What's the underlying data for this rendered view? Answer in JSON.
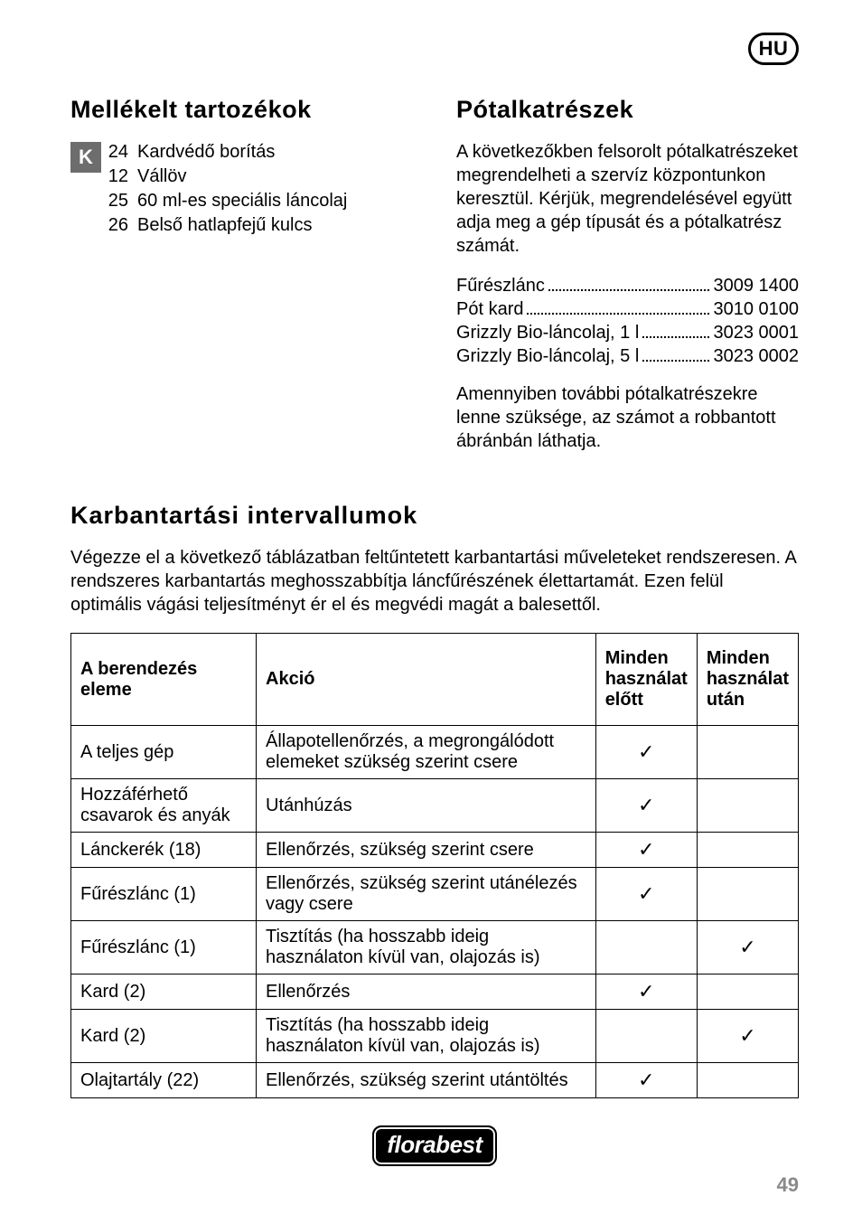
{
  "badge": "HU",
  "left": {
    "heading": "Mellékelt tartozékok",
    "k_label": "K",
    "items": [
      {
        "num": "24",
        "text": "Kardvédő borítás"
      },
      {
        "num": "12",
        "text": "Vállöv"
      },
      {
        "num": "25",
        "text": "60 ml-es speciális láncolaj"
      },
      {
        "num": "26",
        "text": "Belső hatlapfejű kulcs"
      }
    ]
  },
  "right": {
    "heading": "Pótalkatrészek",
    "para1": "A következőkben felsorolt pótalkatrészeket megrendelheti a szervíz központunkon keresztül. Kérjük, megrendelésével együtt adja meg a gép típusát és a pótalkatrész számát.",
    "parts": [
      {
        "label": "Fűrészlánc",
        "value": "3009 1400"
      },
      {
        "label": "Pót kard",
        "value": "3010 0100"
      },
      {
        "label": "Grizzly Bio-láncolaj, 1 l",
        "value": "3023 0001"
      },
      {
        "label": "Grizzly Bio-láncolaj, 5 l",
        "value": "3023 0002"
      }
    ],
    "para2": "Amennyiben további pótalkatrészekre lenne szüksége, az számot a robbantott ábránbán láthatja."
  },
  "maintenance": {
    "heading": "Karbantartási intervallumok",
    "intro": "Végezze el a következő táblázatban feltűntetett karbantartási műveleteket rendszeresen. A rendszeres karbantartás meghosszabbítja láncfűrészének élettartamát. Ezen felül optimális vágási teljesítményt ér el és megvédi magát a balesettől.",
    "headers": {
      "c1": "A berendezés eleme",
      "c2": "Akció",
      "c3": "Minden használat előtt",
      "c4": "Minden használat után"
    },
    "rows": [
      {
        "c1": "A teljes gép",
        "c2": "Állapotellenőrzés, a megrongálódott elemeket szükség szerint csere",
        "before": true,
        "after": false
      },
      {
        "c1": "Hozzáférhető csavarok és anyák",
        "c2": "Utánhúzás",
        "before": true,
        "after": false
      },
      {
        "c1": "Lánckerék (18)",
        "c2": "Ellenőrzés, szükség szerint csere",
        "before": true,
        "after": false
      },
      {
        "c1": "Fűrészlánc (1)",
        "c2": "Ellenőrzés, szükség szerint utánélezés vagy csere",
        "before": true,
        "after": false
      },
      {
        "c1": "Fűrészlánc (1)",
        "c2": "Tisztítás (ha hosszabb ideig használaton kívül van, olajozás is)",
        "before": false,
        "after": true
      },
      {
        "c1": "Kard (2)",
        "c2": "Ellenőrzés",
        "before": true,
        "after": false
      },
      {
        "c1": "Kard (2)",
        "c2": "Tisztítás (ha hosszabb ideig használaton kívül van, olajozás is)",
        "before": false,
        "after": true
      },
      {
        "c1": "Olajtartály (22)",
        "c2": "Ellenőrzés, szükség szerint utántöltés",
        "before": true,
        "after": false
      }
    ]
  },
  "logo": "florabest",
  "page_number": "49",
  "colors": {
    "text": "#000000",
    "bg": "#ffffff",
    "kbox": "#6d6d6d",
    "pagenum": "#8a8a8a"
  }
}
